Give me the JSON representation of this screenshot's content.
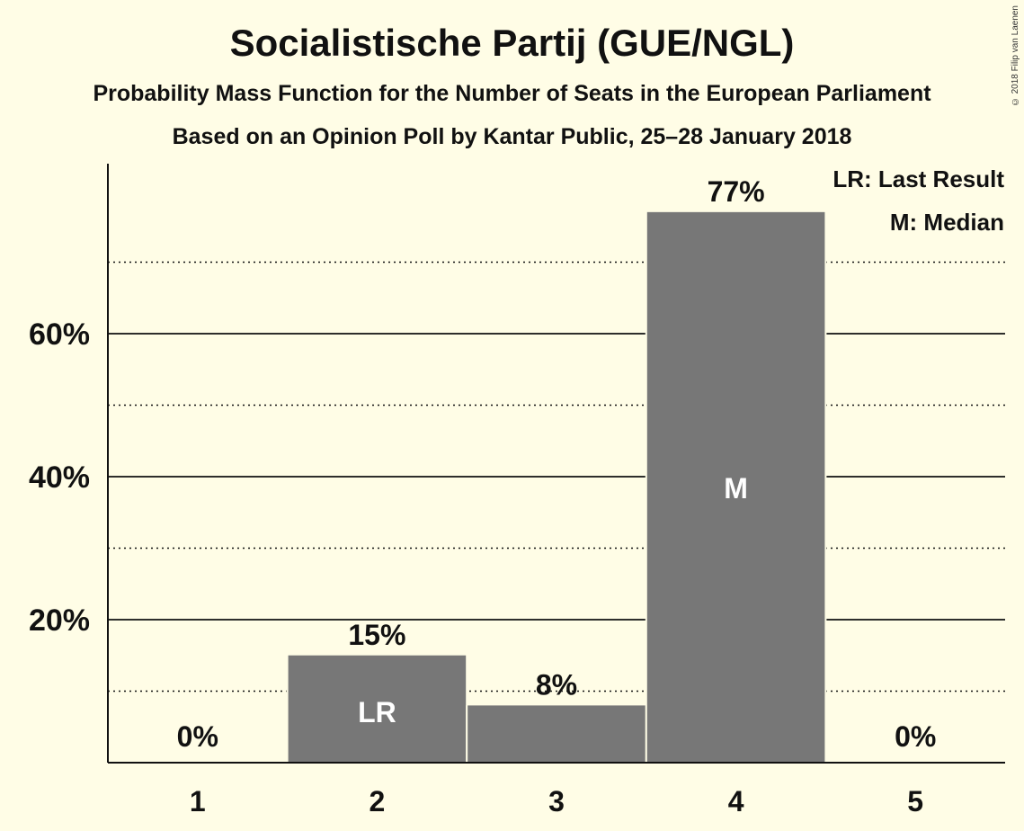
{
  "title": "Socialistische Partij (GUE/NGL)",
  "subtitle": "Probability Mass Function for the Number of Seats in the European Parliament",
  "subtitle2": "Based on an Opinion Poll by Kantar Public, 25–28 January 2018",
  "copyright": "© 2018 Filip van Laenen",
  "legend": {
    "last_result": "LR: Last Result",
    "median": "M: Median"
  },
  "colors": {
    "background": "#fffde6",
    "bar": "#777777",
    "text": "#111111"
  },
  "chart_data": {
    "type": "bar",
    "categories": [
      "1",
      "2",
      "3",
      "4",
      "5"
    ],
    "values": [
      0,
      15,
      8,
      77,
      0
    ],
    "value_labels": [
      "0%",
      "15%",
      "8%",
      "77%",
      "0%"
    ],
    "bar_markers": [
      "",
      "LR",
      "",
      "M",
      ""
    ],
    "yticks": [
      20,
      40,
      60
    ],
    "ytick_labels": [
      "20%",
      "40%",
      "60%"
    ],
    "minor_gridlines": [
      10,
      30,
      50,
      70
    ],
    "ylim": [
      0,
      83
    ],
    "grid": true,
    "legend_placement": "top-right"
  }
}
